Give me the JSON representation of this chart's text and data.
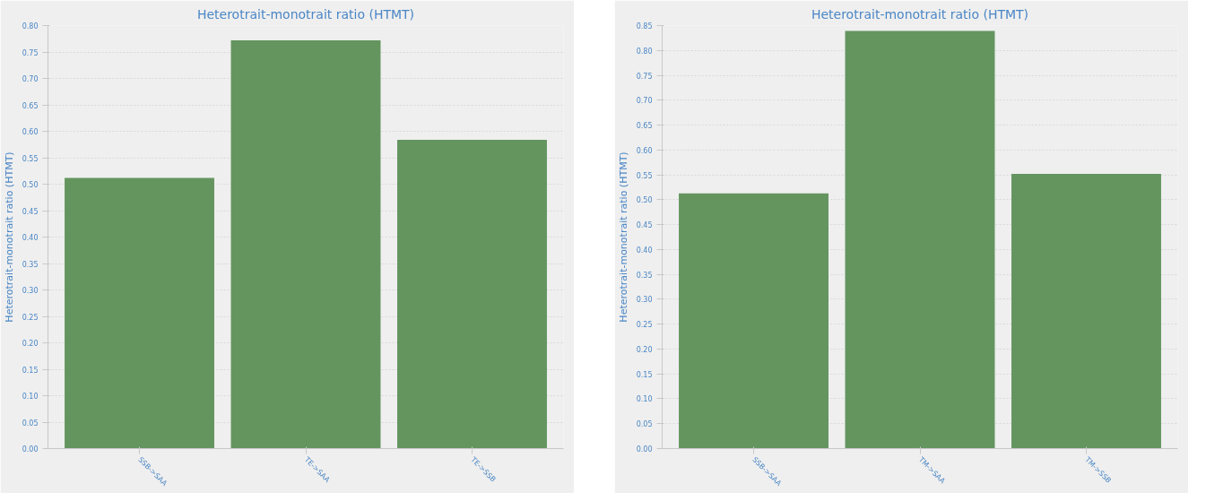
{
  "chart_data": [
    {
      "type": "bar",
      "title": "Heterotrait-monotrait ratio (HTMT)",
      "ylabel": "Heterotrait-monotrait ratio (HTMT)",
      "categories": [
        "SSB->SAA",
        "TE->SAA",
        "TE->SSB"
      ],
      "values": [
        0.512,
        0.772,
        0.584
      ],
      "color": "#64955f",
      "ylim": [
        0,
        0.8
      ],
      "yticks": [
        {
          "value": 0,
          "label": "0.00"
        },
        {
          "value": 0.05,
          "label": "0.05"
        },
        {
          "value": 0.1,
          "label": "0.10"
        },
        {
          "value": 0.15,
          "label": "0.15"
        },
        {
          "value": 0.2,
          "label": "0.20"
        },
        {
          "value": 0.25,
          "label": "0.25"
        },
        {
          "value": 0.3,
          "label": "0.30"
        },
        {
          "value": 0.35,
          "label": "0.35"
        },
        {
          "value": 0.4,
          "label": "0.40"
        },
        {
          "value": 0.45,
          "label": "0.45"
        },
        {
          "value": 0.5,
          "label": "0.50"
        },
        {
          "value": 0.55,
          "label": "0.55"
        },
        {
          "value": 0.6,
          "label": "0.60"
        },
        {
          "value": 0.65,
          "label": "0.65"
        },
        {
          "value": 0.7,
          "label": "0.70"
        },
        {
          "value": 0.75,
          "label": "0.75"
        },
        {
          "value": 0.8,
          "label": "0.80"
        }
      ],
      "grid": "y"
    },
    {
      "type": "bar",
      "title": "Heterotrait-monotrait ratio (HTMT)",
      "ylabel": "Heterotrait-monotrait ratio (HTMT)",
      "categories": [
        "SSB->SAA",
        "TM->SAA",
        "TM->SSB"
      ],
      "values": [
        0.513,
        0.839,
        0.552
      ],
      "color": "#64955f",
      "ylim": [
        0,
        0.85
      ],
      "yticks": [
        {
          "value": 0,
          "label": "0.00"
        },
        {
          "value": 0.05,
          "label": "0.05"
        },
        {
          "value": 0.1,
          "label": "0.10"
        },
        {
          "value": 0.15,
          "label": "0.15"
        },
        {
          "value": 0.2,
          "label": "0.20"
        },
        {
          "value": 0.25,
          "label": "0.25"
        },
        {
          "value": 0.3,
          "label": "0.30"
        },
        {
          "value": 0.35,
          "label": "0.35"
        },
        {
          "value": 0.4,
          "label": "0.40"
        },
        {
          "value": 0.45,
          "label": "0.45"
        },
        {
          "value": 0.5,
          "label": "0.50"
        },
        {
          "value": 0.55,
          "label": "0.55"
        },
        {
          "value": 0.6,
          "label": "0.60"
        },
        {
          "value": 0.65,
          "label": "0.65"
        },
        {
          "value": 0.7,
          "label": "0.70"
        },
        {
          "value": 0.75,
          "label": "0.75"
        },
        {
          "value": 0.8,
          "label": "0.80"
        },
        {
          "value": 0.85,
          "label": "0.85"
        }
      ],
      "grid": "y"
    }
  ]
}
